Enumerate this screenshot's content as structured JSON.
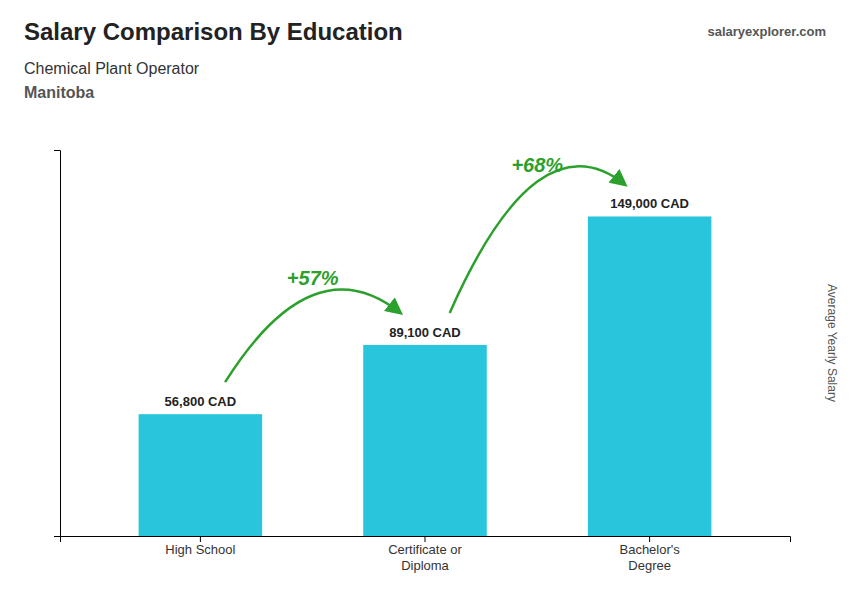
{
  "chart_data": {
    "type": "bar",
    "title": "Salary Comparison By Education",
    "subtitle": [
      "Chemical Plant Operator",
      "Manitoba"
    ],
    "source": "salaryexplorer.com",
    "ylabel": "Average Yearly Salary",
    "categories": [
      "High School",
      "Certificate or\nDiploma",
      "Bachelor's\nDegree"
    ],
    "values": [
      56800,
      89100,
      149000
    ],
    "value_labels": [
      "56,800 CAD",
      "89,100 CAD",
      "149,000 CAD"
    ],
    "data_labels": true,
    "annotations": [
      "+57%",
      "+68%"
    ],
    "color": "#29C5DC",
    "ylim": [
      0,
      180000
    ],
    "grid": false,
    "tick_labels": "x"
  }
}
